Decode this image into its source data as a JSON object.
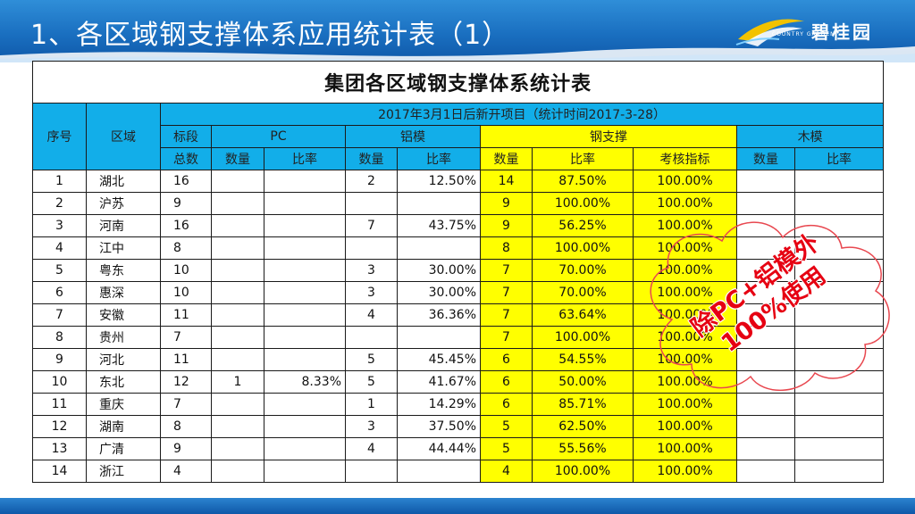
{
  "header": {
    "title": "1、各区域钢支撑体系应用统计表（1）",
    "logo_text": "碧桂园",
    "logo_sub": "COUNTRY GARDEN"
  },
  "table": {
    "title": "集团各区域钢支撑体系统计表",
    "subtitle": "2017年3月1日后新开项目（统计时间2017-3-28）",
    "col_seq": "序号",
    "col_region": "区域",
    "col_section_1": "标段",
    "col_section_2": "总数",
    "group_pc": "PC",
    "group_alu": "铝模",
    "group_steel": "钢支撑",
    "group_wood": "木模",
    "sub_qty": "数量",
    "sub_ratio": "比率",
    "sub_target": "考核指标",
    "rows": [
      {
        "seq": "1",
        "region": "湖北",
        "total": "16",
        "pc_qty": "",
        "pc_ratio": "",
        "alu_qty": "2",
        "alu_ratio": "12.50%",
        "steel_qty": "14",
        "steel_ratio": "87.50%",
        "steel_target": "100.00%",
        "wood_qty": "",
        "wood_ratio": ""
      },
      {
        "seq": "2",
        "region": "沪苏",
        "total": "9",
        "pc_qty": "",
        "pc_ratio": "",
        "alu_qty": "",
        "alu_ratio": "",
        "steel_qty": "9",
        "steel_ratio": "100.00%",
        "steel_target": "100.00%",
        "wood_qty": "",
        "wood_ratio": ""
      },
      {
        "seq": "3",
        "region": "河南",
        "total": "16",
        "pc_qty": "",
        "pc_ratio": "",
        "alu_qty": "7",
        "alu_ratio": "43.75%",
        "steel_qty": "9",
        "steel_ratio": "56.25%",
        "steel_target": "100.00%",
        "wood_qty": "",
        "wood_ratio": ""
      },
      {
        "seq": "4",
        "region": "江中",
        "total": "8",
        "pc_qty": "",
        "pc_ratio": "",
        "alu_qty": "",
        "alu_ratio": "",
        "steel_qty": "8",
        "steel_ratio": "100.00%",
        "steel_target": "100.00%",
        "wood_qty": "",
        "wood_ratio": ""
      },
      {
        "seq": "5",
        "region": "粤东",
        "total": "10",
        "pc_qty": "",
        "pc_ratio": "",
        "alu_qty": "3",
        "alu_ratio": "30.00%",
        "steel_qty": "7",
        "steel_ratio": "70.00%",
        "steel_target": "100.00%",
        "wood_qty": "",
        "wood_ratio": ""
      },
      {
        "seq": "6",
        "region": "惠深",
        "total": "10",
        "pc_qty": "",
        "pc_ratio": "",
        "alu_qty": "3",
        "alu_ratio": "30.00%",
        "steel_qty": "7",
        "steel_ratio": "70.00%",
        "steel_target": "100.00%",
        "wood_qty": "",
        "wood_ratio": ""
      },
      {
        "seq": "7",
        "region": "安徽",
        "total": "11",
        "pc_qty": "",
        "pc_ratio": "",
        "alu_qty": "4",
        "alu_ratio": "36.36%",
        "steel_qty": "7",
        "steel_ratio": "63.64%",
        "steel_target": "100.00%",
        "wood_qty": "",
        "wood_ratio": ""
      },
      {
        "seq": "8",
        "region": "贵州",
        "total": "7",
        "pc_qty": "",
        "pc_ratio": "",
        "alu_qty": "",
        "alu_ratio": "",
        "steel_qty": "7",
        "steel_ratio": "100.00%",
        "steel_target": "100.00%",
        "wood_qty": "",
        "wood_ratio": ""
      },
      {
        "seq": "9",
        "region": "河北",
        "total": "11",
        "pc_qty": "",
        "pc_ratio": "",
        "alu_qty": "5",
        "alu_ratio": "45.45%",
        "steel_qty": "6",
        "steel_ratio": "54.55%",
        "steel_target": "100.00%",
        "wood_qty": "",
        "wood_ratio": ""
      },
      {
        "seq": "10",
        "region": "东北",
        "total": "12",
        "pc_qty": "1",
        "pc_ratio": "8.33%",
        "alu_qty": "5",
        "alu_ratio": "41.67%",
        "steel_qty": "6",
        "steel_ratio": "50.00%",
        "steel_target": "100.00%",
        "wood_qty": "",
        "wood_ratio": ""
      },
      {
        "seq": "11",
        "region": "重庆",
        "total": "7",
        "pc_qty": "",
        "pc_ratio": "",
        "alu_qty": "1",
        "alu_ratio": "14.29%",
        "steel_qty": "6",
        "steel_ratio": "85.71%",
        "steel_target": "100.00%",
        "wood_qty": "",
        "wood_ratio": ""
      },
      {
        "seq": "12",
        "region": "湖南",
        "total": "8",
        "pc_qty": "",
        "pc_ratio": "",
        "alu_qty": "3",
        "alu_ratio": "37.50%",
        "steel_qty": "5",
        "steel_ratio": "62.50%",
        "steel_target": "100.00%",
        "wood_qty": "",
        "wood_ratio": ""
      },
      {
        "seq": "13",
        "region": "广清",
        "total": "9",
        "pc_qty": "",
        "pc_ratio": "",
        "alu_qty": "4",
        "alu_ratio": "44.44%",
        "steel_qty": "5",
        "steel_ratio": "55.56%",
        "steel_target": "100.00%",
        "wood_qty": "",
        "wood_ratio": ""
      },
      {
        "seq": "14",
        "region": "浙江",
        "total": "4",
        "pc_qty": "",
        "pc_ratio": "",
        "alu_qty": "",
        "alu_ratio": "",
        "steel_qty": "4",
        "steel_ratio": "100.00%",
        "steel_target": "100.00%",
        "wood_qty": "",
        "wood_ratio": ""
      }
    ]
  },
  "annotation": {
    "line1": "除PC+铝模外",
    "line2": "100%使用"
  },
  "colors": {
    "header_blue": "#1a6fc0",
    "table_header_cyan": "#12aee9",
    "steel_highlight": "#ffff00",
    "annotation_red": "#e60012"
  }
}
